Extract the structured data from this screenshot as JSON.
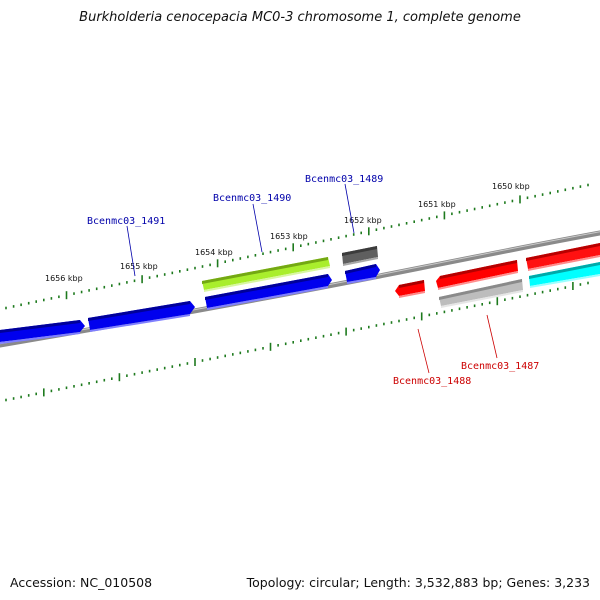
{
  "title": "Burkholderia cenocepacia MC0-3 chromosome 1, complete genome",
  "footer": {
    "accession": "Accession: NC_010508",
    "summary": "Topology: circular; Length: 3,532,883 bp; Genes: 3,233"
  },
  "colors": {
    "backbone": "#888888",
    "ticks": "#1e7a1e",
    "blue_gene": "#0000ee",
    "red_gene": "#ff0000",
    "cyan_gene": "#00ffff",
    "green_gene": "#aaee33",
    "gray_gene": "#666666",
    "lightgray_gene": "#bbbbbb",
    "label_blue": "#0000aa",
    "label_red": "#cc0000"
  },
  "ruler": {
    "forward_labels": [
      "1656 kbp",
      "1655 kbp",
      "1654 kbp",
      "1653 kbp",
      "1652 kbp",
      "1651 kbp",
      "1650 kbp"
    ]
  },
  "genes": [
    {
      "name": "Bcenmc03_1491",
      "color": "label_blue"
    },
    {
      "name": "Bcenmc03_1490",
      "color": "label_blue"
    },
    {
      "name": "Bcenmc03_1489",
      "color": "label_blue"
    },
    {
      "name": "Bcenmc03_1488",
      "color": "label_red"
    },
    {
      "name": "Bcenmc03_1487",
      "color": "label_red"
    }
  ]
}
